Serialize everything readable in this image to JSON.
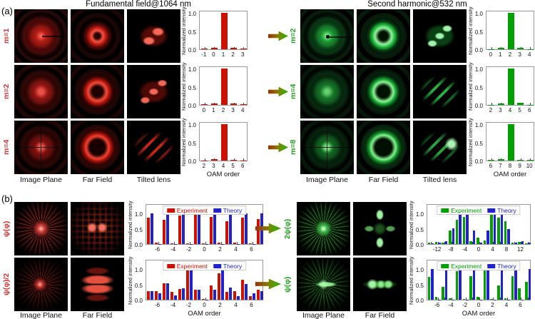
{
  "figure": {
    "panel_a_label": "(a)",
    "panel_b_label": "(b)",
    "title_left": "Fundamental field@1064 nm",
    "title_right": "Second harmonic@532 nm"
  },
  "panel_a": {
    "left_rows": [
      "m=1",
      "m=2",
      "m=4"
    ],
    "right_rows": [
      "m=2",
      "m=4",
      "m=8"
    ],
    "left_cols": [
      "Image Plane",
      "Far Field",
      "Tilted lens"
    ],
    "right_cols": [
      "Image Plane",
      "Far Field",
      "Tilted lens"
    ]
  },
  "panel_b": {
    "left_rows": [
      "ψ(φ)",
      "ψ(φ)/2"
    ],
    "right_rows": [
      "2ψ(φ)",
      "ψ(φ)"
    ],
    "left_cols": [
      "Image Plane",
      "Far Field"
    ],
    "right_cols": [
      "Image Plane",
      "Far Field"
    ]
  },
  "colors": {
    "experiment_red": "#cc1100",
    "experiment_green": "#00a000",
    "theory_blue": "#2222cc",
    "label_red": "#cf3333",
    "label_green": "#22a022"
  },
  "chart_data": [
    {
      "id": "a-left-m1",
      "type": "bar",
      "ylabel": "Normalized intensity",
      "ylim": [
        0,
        1
      ],
      "yticks": [
        "1.0",
        "0.5",
        "0.0"
      ],
      "categories": [
        -1,
        0,
        1,
        2,
        3
      ],
      "values": [
        0.02,
        0.03,
        1.0,
        0.03,
        0.02
      ],
      "bar_color": "#cc1100",
      "xlabel": ""
    },
    {
      "id": "a-left-m2",
      "type": "bar",
      "ylabel": "Normalized intensity",
      "ylim": [
        0,
        1
      ],
      "yticks": [
        "1.0",
        "0.5",
        "0.0"
      ],
      "categories": [
        0,
        1,
        2,
        3,
        4
      ],
      "values": [
        0.02,
        0.03,
        1.0,
        0.04,
        0.02
      ],
      "bar_color": "#cc1100",
      "xlabel": ""
    },
    {
      "id": "a-left-m4",
      "type": "bar",
      "ylabel": "Normalized intensity",
      "ylim": [
        0,
        1
      ],
      "yticks": [
        "1.0",
        "0.5",
        "0.0"
      ],
      "categories": [
        2,
        3,
        4,
        5,
        6
      ],
      "values": [
        0.01,
        0.03,
        1.0,
        0.02,
        0.01
      ],
      "bar_color": "#cc1100",
      "xlabel": "OAM order"
    },
    {
      "id": "a-right-m2",
      "type": "bar",
      "ylabel": "Normalized intensity",
      "ylim": [
        0,
        1
      ],
      "yticks": [
        "1.0",
        "0.5",
        "0.0"
      ],
      "categories": [
        0,
        1,
        2,
        3,
        4
      ],
      "values": [
        0.01,
        0.03,
        1.0,
        0.03,
        0.01
      ],
      "bar_color": "#00a000",
      "xlabel": ""
    },
    {
      "id": "a-right-m4",
      "type": "bar",
      "ylabel": "Normalized intensity",
      "ylim": [
        0,
        1
      ],
      "yticks": [
        "1.0",
        "0.5",
        "0.0"
      ],
      "categories": [
        2,
        3,
        4,
        5,
        6
      ],
      "values": [
        0.01,
        0.04,
        1.0,
        0.05,
        0.01
      ],
      "bar_color": "#00a000",
      "xlabel": ""
    },
    {
      "id": "a-right-m8",
      "type": "bar",
      "ylabel": "Normalized intensity",
      "ylim": [
        0,
        1
      ],
      "yticks": [
        "1.0",
        "0.5",
        "0.0"
      ],
      "categories": [
        6,
        7,
        8,
        9,
        10
      ],
      "values": [
        0.02,
        0.03,
        1.0,
        0.02,
        0.02
      ],
      "bar_color": "#00a000",
      "xlabel": "OAM order"
    },
    {
      "id": "b-left-psi",
      "type": "bar",
      "ylabel": "Normalized intensity",
      "ylim": [
        0,
        1
      ],
      "yticks": [
        "1.0",
        "0.5",
        "0.0"
      ],
      "categories": [
        -7,
        -6,
        -5,
        -4,
        -3,
        -2,
        -1,
        0,
        1,
        2,
        3,
        4,
        5,
        6,
        7
      ],
      "label_ticks": [
        -6,
        -4,
        -2,
        0,
        2,
        4,
        6
      ],
      "legend": true,
      "xlabel": "",
      "series": [
        {
          "name": "Experiment",
          "color": "#cc1100",
          "values": [
            0.85,
            0.05,
            0.8,
            0.03,
            0.93,
            0.03,
            1.0,
            0.03,
            0.88,
            0.04,
            0.75,
            0.04,
            0.87,
            0.03,
            0.82
          ]
        },
        {
          "name": "Theory",
          "color": "#2222cc",
          "values": [
            1.0,
            0.01,
            1.0,
            0.01,
            1.0,
            0.01,
            1.0,
            0.01,
            1.0,
            0.01,
            1.0,
            0.01,
            1.0,
            0.01,
            1.0
          ]
        }
      ]
    },
    {
      "id": "b-left-psi-half",
      "type": "bar",
      "ylabel": "Normalized intensity",
      "ylim": [
        0,
        1
      ],
      "yticks": [
        "1.0",
        "0.5",
        "0.0"
      ],
      "categories": [
        -7,
        -6,
        -5,
        -4,
        -3,
        -2,
        -1,
        0,
        1,
        2,
        3,
        4,
        5,
        6,
        7
      ],
      "label_ticks": [
        -6,
        -4,
        -2,
        0,
        2,
        4,
        6
      ],
      "legend": true,
      "xlabel": "OAM order",
      "series": [
        {
          "name": "Experiment",
          "color": "#cc1100",
          "values": [
            0.27,
            0.27,
            0.53,
            0.25,
            0.35,
            1.0,
            0.33,
            0.03,
            0.46,
            0.85,
            0.25,
            0.28,
            0.65,
            0.12,
            0.33
          ]
        },
        {
          "name": "Theory",
          "color": "#2222cc",
          "values": [
            0.27,
            0.2,
            0.53,
            0.13,
            0.38,
            1.0,
            0.33,
            0.01,
            0.32,
            1.0,
            0.4,
            0.12,
            0.52,
            0.21,
            0.28
          ]
        }
      ]
    },
    {
      "id": "b-right-2psi",
      "type": "bar",
      "ylabel": "Normalized intensity",
      "ylim": [
        0,
        1
      ],
      "yticks": [
        "1.0",
        "0.5",
        "0.0"
      ],
      "categories": [
        -14,
        -12,
        -10,
        -8,
        -6,
        -4,
        -2,
        0,
        2,
        4,
        6,
        8,
        10,
        12,
        14
      ],
      "label_ticks": [
        -12,
        -8,
        -4,
        0,
        4,
        8,
        12
      ],
      "legend": true,
      "xlabel": "",
      "series": [
        {
          "name": "Experiment",
          "color": "#00a000",
          "values": [
            0.04,
            0.07,
            0.05,
            0.45,
            0.78,
            0.88,
            0.1,
            0.2,
            0.12,
            0.98,
            0.85,
            0.75,
            0.05,
            0.07,
            0.03
          ]
        },
        {
          "name": "Theory",
          "color": "#2222cc",
          "values": [
            0.02,
            0.04,
            0.1,
            0.52,
            0.97,
            0.95,
            0.45,
            0.05,
            0.45,
            1.0,
            0.97,
            0.5,
            0.05,
            0.1,
            0.05
          ]
        }
      ]
    },
    {
      "id": "b-right-psi",
      "type": "bar",
      "ylabel": "Normalized intensity",
      "ylim": [
        0,
        1
      ],
      "yticks": [
        "1.0",
        "0.5",
        "0.0"
      ],
      "categories": [
        -7,
        -6,
        -5,
        -4,
        -3,
        -2,
        -1,
        0,
        1,
        2,
        3,
        4,
        5,
        6,
        7
      ],
      "label_ticks": [
        -6,
        -4,
        -2,
        0,
        2,
        4,
        6
      ],
      "legend": true,
      "xlabel": "OAM order",
      "series": [
        {
          "name": "Experiment",
          "color": "#00a000",
          "values": [
            0.75,
            0.1,
            0.42,
            0.05,
            0.93,
            0.03,
            0.77,
            0.09,
            1.0,
            0.02,
            0.46,
            0.05,
            0.77,
            0.37,
            0.58
          ]
        },
        {
          "name": "Theory",
          "color": "#2222cc",
          "values": [
            1.0,
            0.01,
            1.0,
            0.01,
            1.0,
            0.01,
            1.0,
            0.01,
            1.0,
            0.01,
            1.0,
            0.01,
            1.0,
            0.01,
            1.0
          ]
        }
      ]
    }
  ]
}
